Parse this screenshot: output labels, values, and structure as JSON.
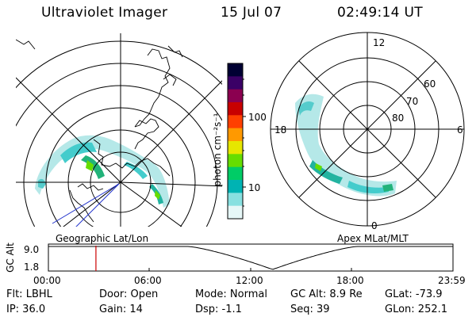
{
  "header": {
    "title": "Ultraviolet Imager",
    "date": "15 Jul 07",
    "time": "02:49:14 UT"
  },
  "left_map": {
    "label": "Geographic Lat/Lon"
  },
  "right_map": {
    "label": "Apex MLat/MLT",
    "mlt_labels": [
      "12",
      "18",
      "6",
      "0"
    ],
    "lat_labels": [
      "60",
      "70",
      "80"
    ]
  },
  "colorbar": {
    "unit_label": "photon cm⁻²s⁻¹",
    "ticks": [
      "100",
      "10"
    ],
    "colors": [
      "#000033",
      "#3a0066",
      "#8b0050",
      "#c80000",
      "#ff4000",
      "#ff9900",
      "#e6e600",
      "#66dd00",
      "#00cc66",
      "#00b3b3",
      "#88e0e0",
      "#e6f7f7"
    ]
  },
  "altitude_panel": {
    "axis_label": "GC Alt",
    "y_ticks": [
      "9.0",
      "1.8"
    ],
    "x_ticks": [
      "00:00",
      "06:00",
      "12:00",
      "18:00",
      "23:59"
    ],
    "marker_time_hours": 2.82,
    "marker_color": "#cc0000"
  },
  "info": {
    "row1": {
      "filter": "Flt: LBHL",
      "door": "Door: Open",
      "mode": "Mode: Normal",
      "gc_alt": "GC Alt: 8.9 Re",
      "glat": "GLat: -73.9"
    },
    "row2": {
      "ip": "IP: 36.0",
      "gain": "Gain: 14",
      "dsp": "Dsp:   -1.1",
      "seq": "Seq: 39",
      "glon": "GLon: 252.1"
    }
  }
}
